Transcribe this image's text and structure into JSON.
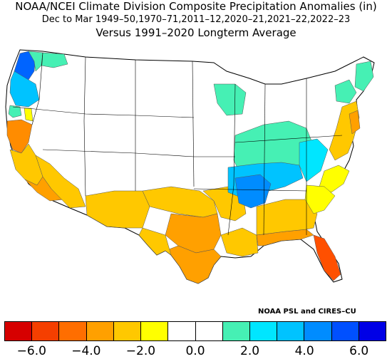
{
  "title": {
    "line1": "NOAA/NCEI Climate Division Composite Precipitation Anomalies (in)",
    "line2": "Dec to Mar  1949–50,1970–71,2011–12,2020–21,2021–22,2022–23",
    "line3": "Versus 1991–2020 Longterm Average"
  },
  "credit": "NOAA PSL and CIRES–CU",
  "legend": {
    "colors": [
      "#d60000",
      "#f53f00",
      "#ff6e00",
      "#ffa000",
      "#ffc800",
      "#ffff00",
      "#ffffff",
      "#ffffff",
      "#46f0b4",
      "#00e6ff",
      "#00c3ff",
      "#008cff",
      "#0050ff",
      "#0000e6"
    ],
    "tick_labels": [
      "−6.0",
      "−4.0",
      "−2.0",
      "0.0",
      "2.0",
      "4.0",
      "6.0"
    ]
  },
  "map_regions": [
    {
      "name": "pacific-northwest-coast",
      "color": "#0064ff",
      "anomaly": 5.0
    },
    {
      "name": "oregon-coast",
      "color": "#00c3ff",
      "anomaly": 3.0
    },
    {
      "name": "northern-california",
      "color": "#ff8c00",
      "anomaly": -3.5
    },
    {
      "name": "southern-california-southwest",
      "color": "#ffc800",
      "anomaly": -2.5
    },
    {
      "name": "southern-plains-texas",
      "color": "#ffc800",
      "anomaly": -2.5
    },
    {
      "name": "florida",
      "color": "#ff5000",
      "anomaly": -4.5
    },
    {
      "name": "ohio-tennessee-valley",
      "color": "#00c3ff",
      "anomaly": 3.0
    },
    {
      "name": "great-lakes",
      "color": "#46f0b4",
      "anomaly": 1.5
    },
    {
      "name": "northeast-coast",
      "color": "#ffc800",
      "anomaly": -2.5
    }
  ]
}
